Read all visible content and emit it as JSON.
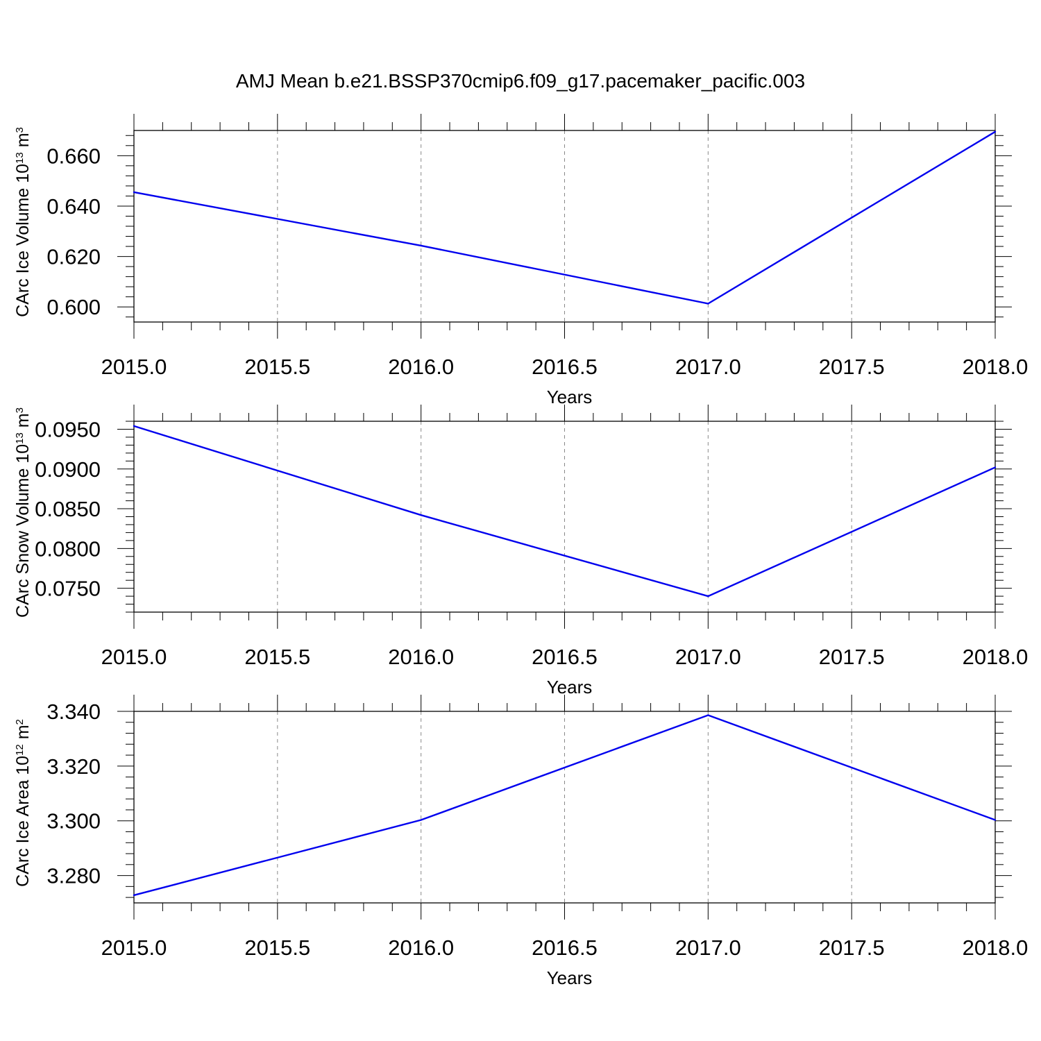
{
  "title": "AMJ Mean b.e21.BSSP370cmip6.f09_g17.pacemaker_pacific.003",
  "colors": {
    "line": "#0000ee",
    "axis": "#000000",
    "grid": "#888888"
  },
  "chart_data": [
    {
      "type": "line",
      "xlabel": "Years",
      "ylabel": "CArc Ice Volume 10",
      "ylabel_exp": "13",
      "ylabel_unit": " m",
      "ylabel_unit_exp": "3",
      "x": [
        2015,
        2016,
        2017,
        2018
      ],
      "series": [
        {
          "values": [
            0.6455,
            0.6243,
            0.6013,
            0.6695
          ]
        }
      ],
      "xlim": [
        2015,
        2018
      ],
      "ylim": [
        0.594,
        0.67
      ],
      "xticks": [
        "2015.0",
        "2015.5",
        "2016.0",
        "2016.5",
        "2017.0",
        "2017.5",
        "2018.0"
      ],
      "yticks": [
        "0.600",
        "0.620",
        "0.640",
        "0.660"
      ],
      "ytick_values": [
        0.6,
        0.62,
        0.64,
        0.66
      ],
      "y_minor_step": 0.004,
      "grid": "vertical-dashed"
    },
    {
      "type": "line",
      "xlabel": "Years",
      "ylabel": "CArc Snow Volume 10",
      "ylabel_exp": "13",
      "ylabel_unit": " m",
      "ylabel_unit_exp": "3",
      "x": [
        2015,
        2016,
        2017,
        2018
      ],
      "series": [
        {
          "values": [
            0.0954,
            0.0842,
            0.074,
            0.0902
          ]
        }
      ],
      "xlim": [
        2015,
        2018
      ],
      "ylim": [
        0.072,
        0.096
      ],
      "xticks": [
        "2015.0",
        "2015.5",
        "2016.0",
        "2016.5",
        "2017.0",
        "2017.5",
        "2018.0"
      ],
      "yticks": [
        "0.0750",
        "0.0800",
        "0.0850",
        "0.0900",
        "0.0950"
      ],
      "ytick_values": [
        0.075,
        0.08,
        0.085,
        0.09,
        0.095
      ],
      "y_minor_step": 0.001,
      "grid": "vertical-dashed"
    },
    {
      "type": "line",
      "xlabel": "Years",
      "ylabel": "CArc Ice Area 10",
      "ylabel_exp": "12",
      "ylabel_unit": " m",
      "ylabel_unit_exp": "2",
      "x": [
        2015,
        2016,
        2017,
        2018
      ],
      "series": [
        {
          "values": [
            3.2728,
            3.3003,
            3.3386,
            3.3003
          ]
        }
      ],
      "xlim": [
        2015,
        2018
      ],
      "ylim": [
        3.27,
        3.34
      ],
      "xticks": [
        "2015.0",
        "2015.5",
        "2016.0",
        "2016.5",
        "2017.0",
        "2017.5",
        "2018.0"
      ],
      "yticks": [
        "3.280",
        "3.300",
        "3.320",
        "3.340"
      ],
      "ytick_values": [
        3.28,
        3.3,
        3.32,
        3.34
      ],
      "y_minor_step": 0.004,
      "grid": "vertical-dashed"
    }
  ]
}
